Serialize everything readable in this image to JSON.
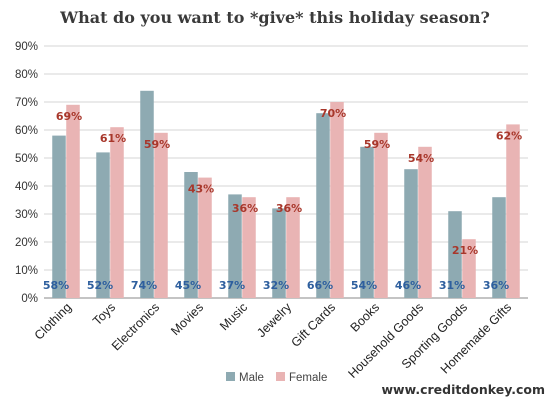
{
  "colors": {
    "male": "#8eaab2",
    "female": "#e9b4b4",
    "grid": "#d4d4d4",
    "axis": "#888888"
  },
  "source": "www.creditdonkey.com",
  "chart_data": {
    "type": "bar",
    "title": "What do you want to *give* this holiday season?",
    "categories": [
      "Clothing",
      "Toys",
      "Electronics",
      "Movies",
      "Music",
      "Jewelry",
      "Gift Cards",
      "Books",
      "Household Goods",
      "Sporting Goods",
      "Homemade Gifts"
    ],
    "series": [
      {
        "name": "Male",
        "values": [
          58,
          52,
          74,
          45,
          37,
          32,
          66,
          54,
          46,
          31,
          36
        ],
        "labels": [
          "58%",
          "52%",
          "74%",
          "45%",
          "37%",
          "32%",
          "66%",
          "54%",
          "46%",
          "31%",
          "36%"
        ]
      },
      {
        "name": "Female",
        "values": [
          69,
          61,
          59,
          43,
          36,
          36,
          70,
          59,
          54,
          21,
          62
        ],
        "labels": [
          "69%",
          "61%",
          "59%",
          "43%",
          "36%",
          "36%",
          "70%",
          "59%",
          "54%",
          "21%",
          "62%"
        ]
      }
    ],
    "ylim": [
      0,
      90
    ],
    "yticks": [
      "0%",
      "10%",
      "20%",
      "30%",
      "40%",
      "50%",
      "60%",
      "70%",
      "80%",
      "90%"
    ],
    "grid": true,
    "legend_position": "bottom-center"
  }
}
